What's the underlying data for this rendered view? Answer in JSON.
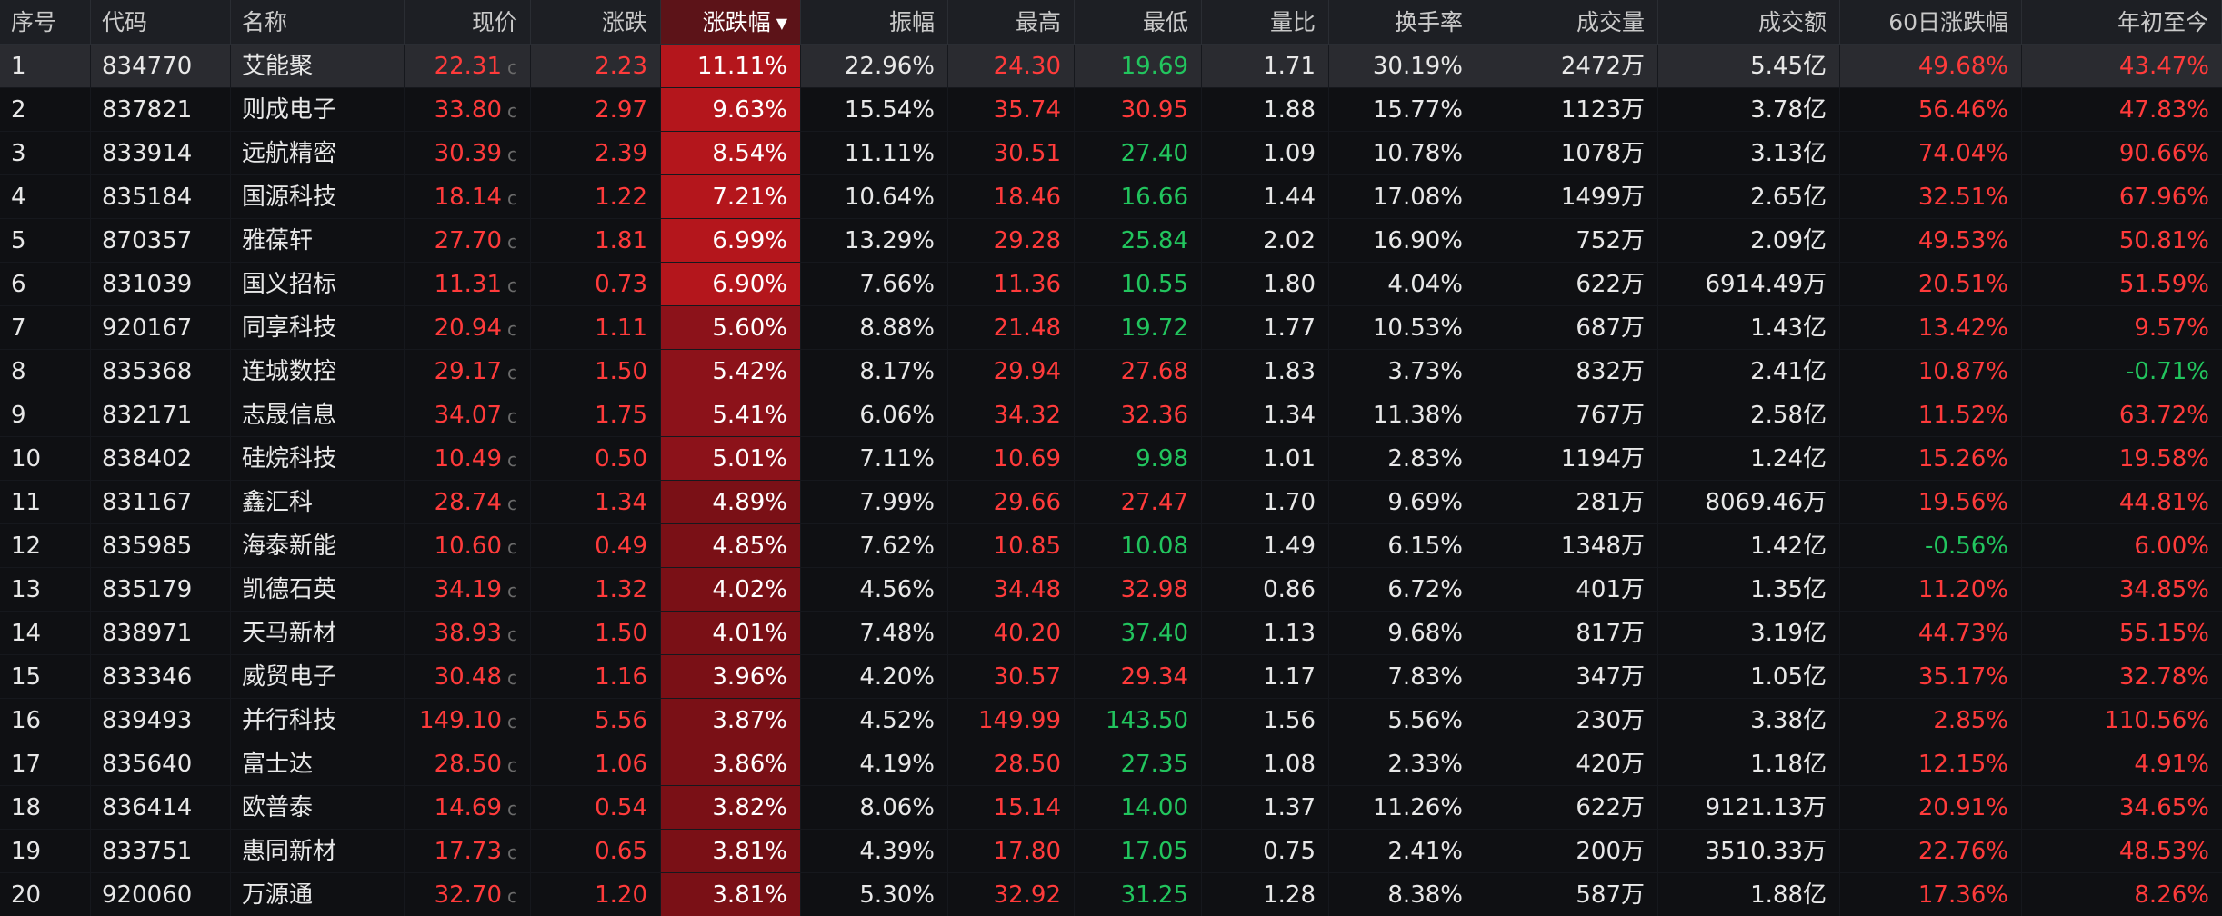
{
  "colors": {
    "up": "#ff3b3b",
    "down": "#22c55e",
    "neutral": "#e8e8e8",
    "pct_strong": "#b4161c",
    "pct_mid": "#8c121a",
    "pct_weak": "#7a1016"
  },
  "table": {
    "headers": [
      "序号",
      "代码",
      "名称",
      "现价",
      "涨跌",
      "涨跌幅",
      "振幅",
      "最高",
      "最低",
      "量比",
      "换手率",
      "成交量",
      "成交额",
      "60日涨跌幅",
      "年初至今"
    ],
    "sort_icon": "sort-desc-icon",
    "c_mark": "c",
    "rows": [
      {
        "seq": "1",
        "code": "834770",
        "name": "艾能聚",
        "price": "22.31",
        "chg": "2.23",
        "pct": "11.11%",
        "amp": "22.96%",
        "high": "24.30",
        "high_dir": "up",
        "low": "19.69",
        "low_dir": "down",
        "vr": "1.71",
        "tr": "30.19%",
        "vol": "2472万",
        "amt": "5.45亿",
        "d60": "49.68%",
        "d60_dir": "up",
        "ytd": "43.47%",
        "ytd_dir": "up",
        "pct_level": "strong",
        "selected": true
      },
      {
        "seq": "2",
        "code": "837821",
        "name": "则成电子",
        "price": "33.80",
        "chg": "2.97",
        "pct": "9.63%",
        "amp": "15.54%",
        "high": "35.74",
        "high_dir": "up",
        "low": "30.95",
        "low_dir": "up",
        "vr": "1.88",
        "tr": "15.77%",
        "vol": "1123万",
        "amt": "3.78亿",
        "d60": "56.46%",
        "d60_dir": "up",
        "ytd": "47.83%",
        "ytd_dir": "up",
        "pct_level": "strong"
      },
      {
        "seq": "3",
        "code": "833914",
        "name": "远航精密",
        "price": "30.39",
        "chg": "2.39",
        "pct": "8.54%",
        "amp": "11.11%",
        "high": "30.51",
        "high_dir": "up",
        "low": "27.40",
        "low_dir": "down",
        "vr": "1.09",
        "tr": "10.78%",
        "vol": "1078万",
        "amt": "3.13亿",
        "d60": "74.04%",
        "d60_dir": "up",
        "ytd": "90.66%",
        "ytd_dir": "up",
        "pct_level": "strong"
      },
      {
        "seq": "4",
        "code": "835184",
        "name": "国源科技",
        "price": "18.14",
        "chg": "1.22",
        "pct": "7.21%",
        "amp": "10.64%",
        "high": "18.46",
        "high_dir": "up",
        "low": "16.66",
        "low_dir": "down",
        "vr": "1.44",
        "tr": "17.08%",
        "vol": "1499万",
        "amt": "2.65亿",
        "d60": "32.51%",
        "d60_dir": "up",
        "ytd": "67.96%",
        "ytd_dir": "up",
        "pct_level": "strong"
      },
      {
        "seq": "5",
        "code": "870357",
        "name": "雅葆轩",
        "price": "27.70",
        "chg": "1.81",
        "pct": "6.99%",
        "amp": "13.29%",
        "high": "29.28",
        "high_dir": "up",
        "low": "25.84",
        "low_dir": "down",
        "vr": "2.02",
        "tr": "16.90%",
        "vol": "752万",
        "amt": "2.09亿",
        "d60": "49.53%",
        "d60_dir": "up",
        "ytd": "50.81%",
        "ytd_dir": "up",
        "pct_level": "strong"
      },
      {
        "seq": "6",
        "code": "831039",
        "name": "国义招标",
        "price": "11.31",
        "chg": "0.73",
        "pct": "6.90%",
        "amp": "7.66%",
        "high": "11.36",
        "high_dir": "up",
        "low": "10.55",
        "low_dir": "down",
        "vr": "1.80",
        "tr": "4.04%",
        "vol": "622万",
        "amt": "6914.49万",
        "d60": "20.51%",
        "d60_dir": "up",
        "ytd": "51.59%",
        "ytd_dir": "up",
        "pct_level": "strong"
      },
      {
        "seq": "7",
        "code": "920167",
        "name": "同享科技",
        "price": "20.94",
        "chg": "1.11",
        "pct": "5.60%",
        "amp": "8.88%",
        "high": "21.48",
        "high_dir": "up",
        "low": "19.72",
        "low_dir": "down",
        "vr": "1.77",
        "tr": "10.53%",
        "vol": "687万",
        "amt": "1.43亿",
        "d60": "13.42%",
        "d60_dir": "up",
        "ytd": "9.57%",
        "ytd_dir": "up",
        "pct_level": "mid"
      },
      {
        "seq": "8",
        "code": "835368",
        "name": "连城数控",
        "price": "29.17",
        "chg": "1.50",
        "pct": "5.42%",
        "amp": "8.17%",
        "high": "29.94",
        "high_dir": "up",
        "low": "27.68",
        "low_dir": "up",
        "vr": "1.83",
        "tr": "3.73%",
        "vol": "832万",
        "amt": "2.41亿",
        "d60": "10.87%",
        "d60_dir": "up",
        "ytd": "-0.71%",
        "ytd_dir": "down",
        "pct_level": "mid"
      },
      {
        "seq": "9",
        "code": "832171",
        "name": "志晟信息",
        "price": "34.07",
        "chg": "1.75",
        "pct": "5.41%",
        "amp": "6.06%",
        "high": "34.32",
        "high_dir": "up",
        "low": "32.36",
        "low_dir": "up",
        "vr": "1.34",
        "tr": "11.38%",
        "vol": "767万",
        "amt": "2.58亿",
        "d60": "11.52%",
        "d60_dir": "up",
        "ytd": "63.72%",
        "ytd_dir": "up",
        "pct_level": "mid"
      },
      {
        "seq": "10",
        "code": "838402",
        "name": "硅烷科技",
        "price": "10.49",
        "chg": "0.50",
        "pct": "5.01%",
        "amp": "7.11%",
        "high": "10.69",
        "high_dir": "up",
        "low": "9.98",
        "low_dir": "down",
        "vr": "1.01",
        "tr": "2.83%",
        "vol": "1194万",
        "amt": "1.24亿",
        "d60": "15.26%",
        "d60_dir": "up",
        "ytd": "19.58%",
        "ytd_dir": "up",
        "pct_level": "mid"
      },
      {
        "seq": "11",
        "code": "831167",
        "name": "鑫汇科",
        "price": "28.74",
        "chg": "1.34",
        "pct": "4.89%",
        "amp": "7.99%",
        "high": "29.66",
        "high_dir": "up",
        "low": "27.47",
        "low_dir": "up",
        "vr": "1.70",
        "tr": "9.69%",
        "vol": "281万",
        "amt": "8069.46万",
        "d60": "19.56%",
        "d60_dir": "up",
        "ytd": "44.81%",
        "ytd_dir": "up",
        "pct_level": "weak"
      },
      {
        "seq": "12",
        "code": "835985",
        "name": "海泰新能",
        "price": "10.60",
        "chg": "0.49",
        "pct": "4.85%",
        "amp": "7.62%",
        "high": "10.85",
        "high_dir": "up",
        "low": "10.08",
        "low_dir": "down",
        "vr": "1.49",
        "tr": "6.15%",
        "vol": "1348万",
        "amt": "1.42亿",
        "d60": "-0.56%",
        "d60_dir": "down",
        "ytd": "6.00%",
        "ytd_dir": "up",
        "pct_level": "weak"
      },
      {
        "seq": "13",
        "code": "835179",
        "name": "凯德石英",
        "price": "34.19",
        "chg": "1.32",
        "pct": "4.02%",
        "amp": "4.56%",
        "high": "34.48",
        "high_dir": "up",
        "low": "32.98",
        "low_dir": "up",
        "vr": "0.86",
        "tr": "6.72%",
        "vol": "401万",
        "amt": "1.35亿",
        "d60": "11.20%",
        "d60_dir": "up",
        "ytd": "34.85%",
        "ytd_dir": "up",
        "pct_level": "weak"
      },
      {
        "seq": "14",
        "code": "838971",
        "name": "天马新材",
        "price": "38.93",
        "chg": "1.50",
        "pct": "4.01%",
        "amp": "7.48%",
        "high": "40.20",
        "high_dir": "up",
        "low": "37.40",
        "low_dir": "down",
        "vr": "1.13",
        "tr": "9.68%",
        "vol": "817万",
        "amt": "3.19亿",
        "d60": "44.73%",
        "d60_dir": "up",
        "ytd": "55.15%",
        "ytd_dir": "up",
        "pct_level": "weak"
      },
      {
        "seq": "15",
        "code": "833346",
        "name": "威贸电子",
        "price": "30.48",
        "chg": "1.16",
        "pct": "3.96%",
        "amp": "4.20%",
        "high": "30.57",
        "high_dir": "up",
        "low": "29.34",
        "low_dir": "up",
        "vr": "1.17",
        "tr": "7.83%",
        "vol": "347万",
        "amt": "1.05亿",
        "d60": "35.17%",
        "d60_dir": "up",
        "ytd": "32.78%",
        "ytd_dir": "up",
        "pct_level": "weak"
      },
      {
        "seq": "16",
        "code": "839493",
        "name": "并行科技",
        "price": "149.10",
        "chg": "5.56",
        "pct": "3.87%",
        "amp": "4.52%",
        "high": "149.99",
        "high_dir": "up",
        "low": "143.50",
        "low_dir": "down",
        "vr": "1.56",
        "tr": "5.56%",
        "vol": "230万",
        "amt": "3.38亿",
        "d60": "2.85%",
        "d60_dir": "up",
        "ytd": "110.56%",
        "ytd_dir": "up",
        "pct_level": "weak"
      },
      {
        "seq": "17",
        "code": "835640",
        "name": "富士达",
        "price": "28.50",
        "chg": "1.06",
        "pct": "3.86%",
        "amp": "4.19%",
        "high": "28.50",
        "high_dir": "up",
        "low": "27.35",
        "low_dir": "down",
        "vr": "1.08",
        "tr": "2.33%",
        "vol": "420万",
        "amt": "1.18亿",
        "d60": "12.15%",
        "d60_dir": "up",
        "ytd": "4.91%",
        "ytd_dir": "up",
        "pct_level": "weak"
      },
      {
        "seq": "18",
        "code": "836414",
        "name": "欧普泰",
        "price": "14.69",
        "chg": "0.54",
        "pct": "3.82%",
        "amp": "8.06%",
        "high": "15.14",
        "high_dir": "up",
        "low": "14.00",
        "low_dir": "down",
        "vr": "1.37",
        "tr": "11.26%",
        "vol": "622万",
        "amt": "9121.13万",
        "d60": "20.91%",
        "d60_dir": "up",
        "ytd": "34.65%",
        "ytd_dir": "up",
        "pct_level": "weak"
      },
      {
        "seq": "19",
        "code": "833751",
        "name": "惠同新材",
        "price": "17.73",
        "chg": "0.65",
        "pct": "3.81%",
        "amp": "4.39%",
        "high": "17.80",
        "high_dir": "up",
        "low": "17.05",
        "low_dir": "down",
        "vr": "0.75",
        "tr": "2.41%",
        "vol": "200万",
        "amt": "3510.33万",
        "d60": "22.76%",
        "d60_dir": "up",
        "ytd": "48.53%",
        "ytd_dir": "up",
        "pct_level": "weak"
      },
      {
        "seq": "20",
        "code": "920060",
        "name": "万源通",
        "price": "32.70",
        "chg": "1.20",
        "pct": "3.81%",
        "amp": "5.30%",
        "high": "32.92",
        "high_dir": "up",
        "low": "31.25",
        "low_dir": "down",
        "vr": "1.28",
        "tr": "8.38%",
        "vol": "587万",
        "amt": "1.88亿",
        "d60": "17.36%",
        "d60_dir": "up",
        "ytd": "8.26%",
        "ytd_dir": "up",
        "pct_level": "weak"
      }
    ]
  }
}
